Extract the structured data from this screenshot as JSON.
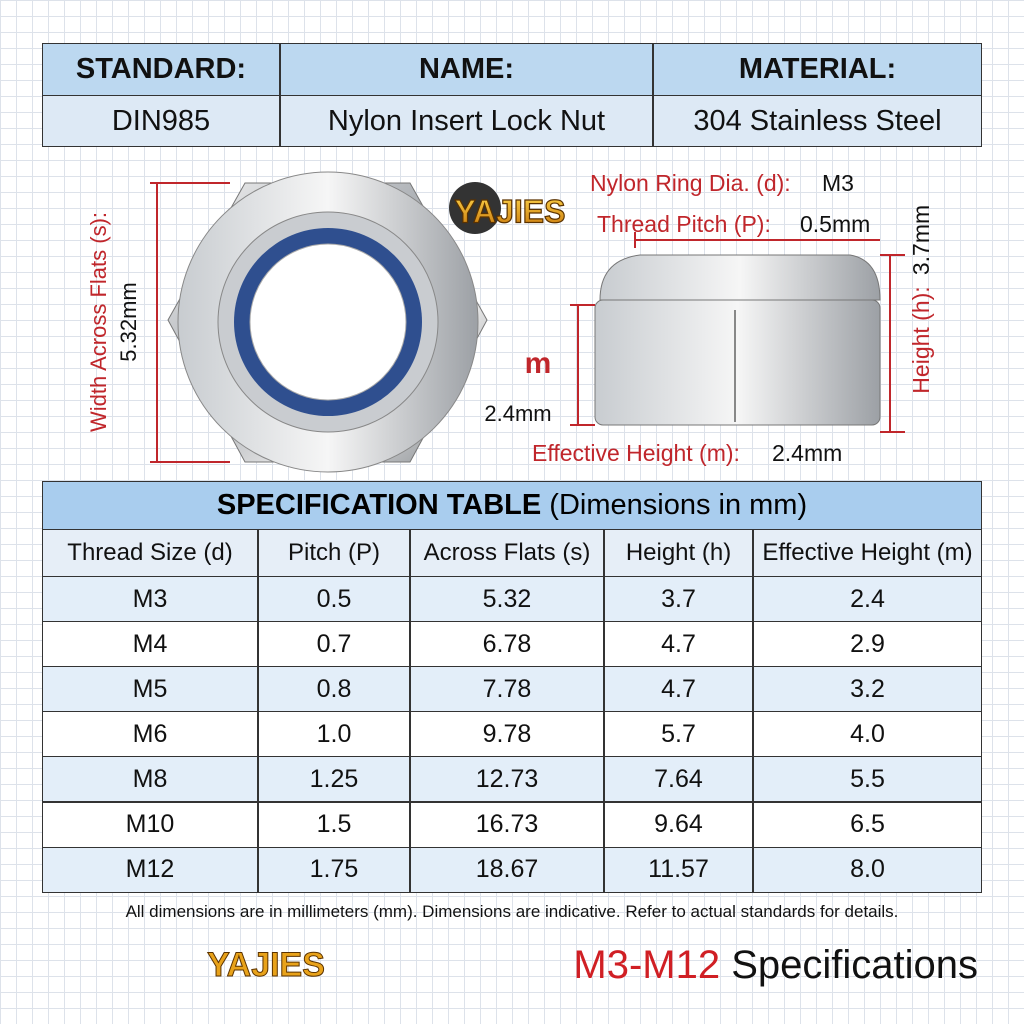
{
  "header": {
    "labels": [
      "STANDARD:",
      "NAME:",
      "MATERIAL:"
    ],
    "values": [
      "DIN985",
      "Nylon Insert Lock Nut",
      "304 Stainless Steel"
    ]
  },
  "brand": {
    "logo_top": "YAJIES",
    "logo_bottom": "YAJIES"
  },
  "diagram": {
    "width_label": "Width Across Flats (s):",
    "width_value": "5.32mm",
    "ring_label": "Nylon Ring Dia. (d):",
    "ring_value": "M3",
    "pitch_label": "Thread Pitch (P):",
    "pitch_value": "0.5mm",
    "height_label": "Height (h):",
    "height_value": "3.7mm",
    "m_marker": "m",
    "m_value": "2.4mm",
    "effective_label": "Effective Height (m):",
    "effective_value": "2.4mm"
  },
  "table": {
    "title": "SPECIFICATION TABLE",
    "subtitle": "(Dimensions in mm)",
    "columns": [
      "Thread Size (d)",
      "Pitch (P)",
      "Across Flats (s)",
      "Height (h)",
      "Effective Height (m)"
    ],
    "rows": [
      [
        "M3",
        "0.5",
        "5.32",
        "3.7",
        "2.4"
      ],
      [
        "M4",
        "0.7",
        "6.78",
        "4.7",
        "2.9"
      ],
      [
        "M5",
        "0.8",
        "7.78",
        "4.7",
        "3.2"
      ],
      [
        "M6",
        "1.0",
        "9.78",
        "5.7",
        "4.0"
      ],
      [
        "M8",
        "1.25",
        "12.73",
        "7.64",
        "5.5"
      ],
      [
        "M10",
        "1.5",
        "16.73",
        "9.64",
        "6.5"
      ],
      [
        "M12",
        "1.75",
        "18.67",
        "11.57",
        "8.0"
      ]
    ]
  },
  "note": "All dimensions are in millimeters (mm). Dimensions are indicative. Refer to actual standards for details.",
  "footer": {
    "range": "M3-M12",
    "label": "Specifications"
  }
}
